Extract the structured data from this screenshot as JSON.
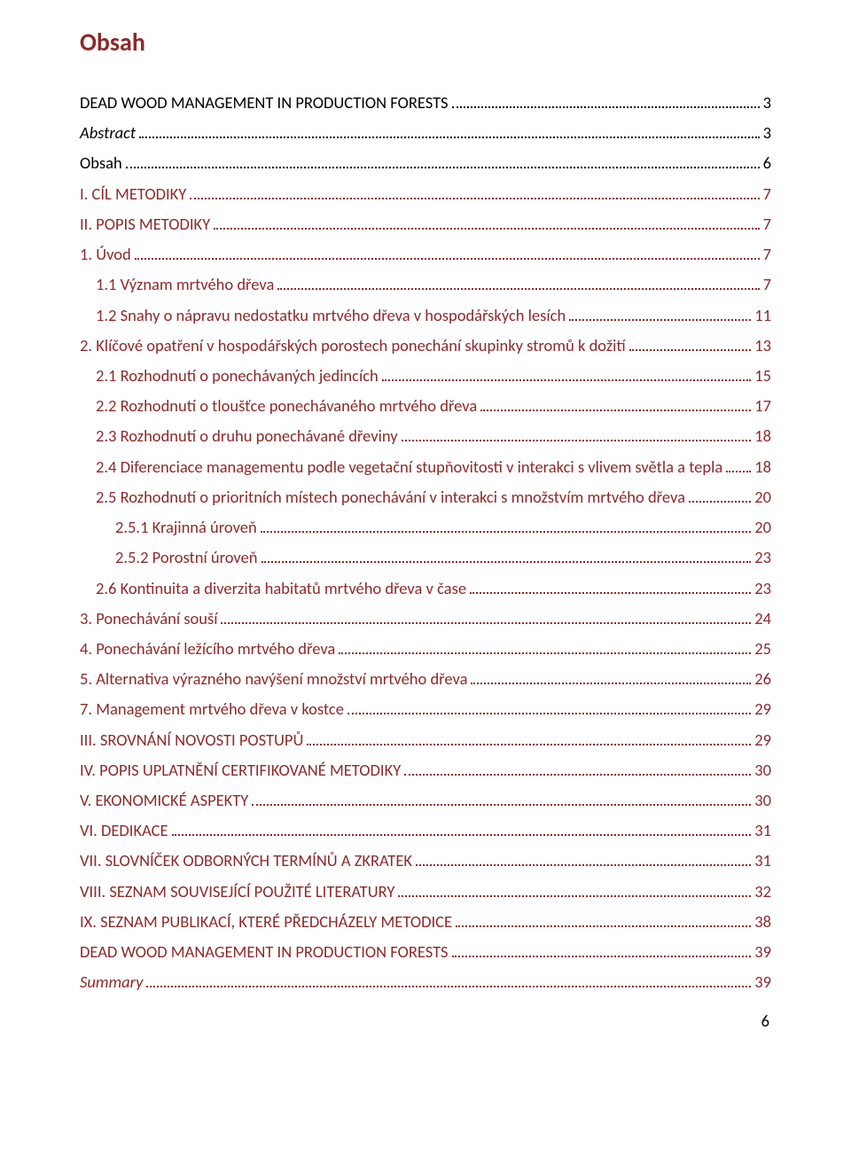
{
  "title": "Obsah",
  "title_color": "#8b2a2a",
  "link_color": "#8b2a2a",
  "text_color": "#000000",
  "page_number": "6",
  "toc": [
    {
      "label": "DEAD WOOD MANAGEMENT IN PRODUCTION FORESTS",
      "page": "3",
      "indent": 0,
      "italic": false,
      "link": false
    },
    {
      "label": "Abstract",
      "page": "3",
      "indent": 0,
      "italic": true,
      "link": false
    },
    {
      "label": "Obsah",
      "page": "6",
      "indent": 0,
      "italic": false,
      "link": false
    },
    {
      "label": "I. CÍL METODIKY",
      "page": "7",
      "indent": 0,
      "italic": false,
      "link": true
    },
    {
      "label": "II. POPIS METODIKY",
      "page": "7",
      "indent": 0,
      "italic": false,
      "link": true
    },
    {
      "label": "1. Úvod",
      "page": "7",
      "indent": 0,
      "italic": false,
      "link": true
    },
    {
      "label": "1.1 Význam mrtvého dřeva",
      "page": "7",
      "indent": 1,
      "italic": false,
      "link": true
    },
    {
      "label": "1.2 Snahy o nápravu nedostatku mrtvého dřeva v hospodářských lesích",
      "page": "11",
      "indent": 1,
      "italic": false,
      "link": true
    },
    {
      "label": "2. Klíčové opatření v hospodářských porostech ponechání skupinky stromů k dožití",
      "page": "13",
      "indent": 0,
      "italic": false,
      "link": true
    },
    {
      "label": "2.1 Rozhodnutí o ponechávaných jedincích",
      "page": "15",
      "indent": 1,
      "italic": false,
      "link": true
    },
    {
      "label": "2.2 Rozhodnutí o tloušťce ponechávaného mrtvého dřeva",
      "page": "17",
      "indent": 1,
      "italic": false,
      "link": true
    },
    {
      "label": "2.3 Rozhodnutí o druhu ponechávané dřeviny",
      "page": "18",
      "indent": 1,
      "italic": false,
      "link": true
    },
    {
      "label": "2.4 Diferenciace managementu podle vegetační stupňovitosti v interakci s vlivem světla a tepla",
      "page": "18",
      "indent": 1,
      "italic": false,
      "link": true
    },
    {
      "label": "2.5 Rozhodnutí o prioritních místech ponechávání v interakci s množstvím mrtvého dřeva",
      "page": "20",
      "indent": 1,
      "italic": false,
      "link": true
    },
    {
      "label": "2.5.1 Krajinná úroveň",
      "page": "20",
      "indent": 2,
      "italic": false,
      "link": true
    },
    {
      "label": "2.5.2 Porostní úroveň",
      "page": "23",
      "indent": 2,
      "italic": false,
      "link": true
    },
    {
      "label": "2.6 Kontinuita a diverzita habitatů mrtvého dřeva v čase",
      "page": "23",
      "indent": 1,
      "italic": false,
      "link": true
    },
    {
      "label": "3. Ponechávání souší",
      "page": "24",
      "indent": 0,
      "italic": false,
      "link": true
    },
    {
      "label": "4. Ponechávání ležícího mrtvého dřeva",
      "page": "25",
      "indent": 0,
      "italic": false,
      "link": true
    },
    {
      "label": "5. Alternativa výrazného navýšení množství mrtvého dřeva",
      "page": "26",
      "indent": 0,
      "italic": false,
      "link": true
    },
    {
      "label": "7. Management mrtvého dřeva v kostce",
      "page": "29",
      "indent": 0,
      "italic": false,
      "link": true
    },
    {
      "label": "III. SROVNÁNÍ NOVOSTI POSTUPŮ",
      "page": "29",
      "indent": 0,
      "italic": false,
      "link": true
    },
    {
      "label": "IV. POPIS UPLATNĚNÍ CERTIFIKOVANÉ METODIKY",
      "page": "30",
      "indent": 0,
      "italic": false,
      "link": true
    },
    {
      "label": "V. EKONOMICKÉ ASPEKTY",
      "page": "30",
      "indent": 0,
      "italic": false,
      "link": true
    },
    {
      "label": "VI. DEDIKACE",
      "page": "31",
      "indent": 0,
      "italic": false,
      "link": true
    },
    {
      "label": "VII. SLOVNÍČEK ODBORNÝCH TERMÍNŮ A ZKRATEK",
      "page": "31",
      "indent": 0,
      "italic": false,
      "link": true
    },
    {
      "label": "VIII. SEZNAM SOUVISEJÍCÍ POUŽITÉ LITERATURY",
      "page": "32",
      "indent": 0,
      "italic": false,
      "link": true
    },
    {
      "label": "IX. SEZNAM PUBLIKACÍ, KTERÉ PŘEDCHÁZELY METODICE",
      "page": "38",
      "indent": 0,
      "italic": false,
      "link": true
    },
    {
      "label": "DEAD WOOD MANAGEMENT IN PRODUCTION FORESTS",
      "page": "39",
      "indent": 0,
      "italic": false,
      "link": true
    },
    {
      "label": "Summary",
      "page": "39",
      "indent": 0,
      "italic": true,
      "link": true
    }
  ]
}
